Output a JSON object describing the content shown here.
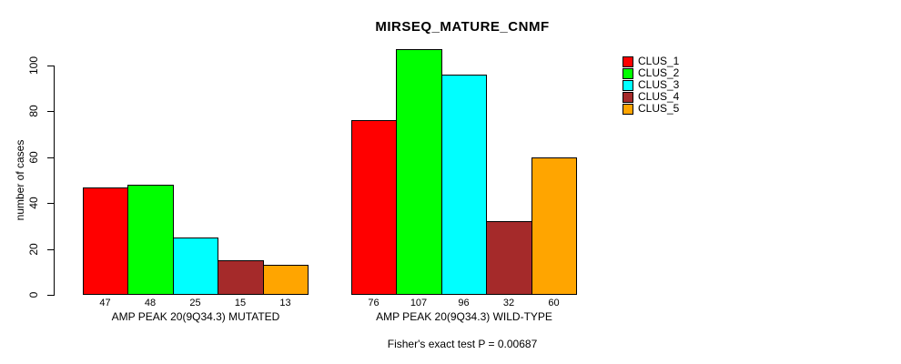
{
  "title": "MIRSEQ_MATURE_CNMF",
  "footer": "Fisher's exact test P = 0.00687",
  "colors": {
    "background": "#ffffff",
    "axis": "#000000",
    "bar_border": "#000000"
  },
  "chart_data": {
    "type": "bar",
    "title": "MIRSEQ_MATURE_CNMF",
    "xlabel": "",
    "ylabel": "number of cases",
    "ylim": [
      0,
      107
    ],
    "yticks": [
      0,
      20,
      40,
      60,
      80,
      100
    ],
    "grid": false,
    "legend_position": "right-outside-top",
    "bar_value_labels": true,
    "categories": [
      "AMP PEAK 20(9Q34.3) MUTATED",
      "AMP PEAK 20(9Q34.3) WILD-TYPE"
    ],
    "series": [
      {
        "name": "CLUS_1",
        "color": "#ff0000",
        "values": [
          47,
          76
        ]
      },
      {
        "name": "CLUS_2",
        "color": "#00ff00",
        "values": [
          48,
          107
        ]
      },
      {
        "name": "CLUS_3",
        "color": "#00ffff",
        "values": [
          25,
          96
        ]
      },
      {
        "name": "CLUS_4",
        "color": "#a52a2a",
        "values": [
          15,
          32
        ]
      },
      {
        "name": "CLUS_5",
        "color": "#ffa500",
        "values": [
          13,
          60
        ]
      }
    ],
    "annotation": "Fisher's exact test P = 0.00687"
  }
}
